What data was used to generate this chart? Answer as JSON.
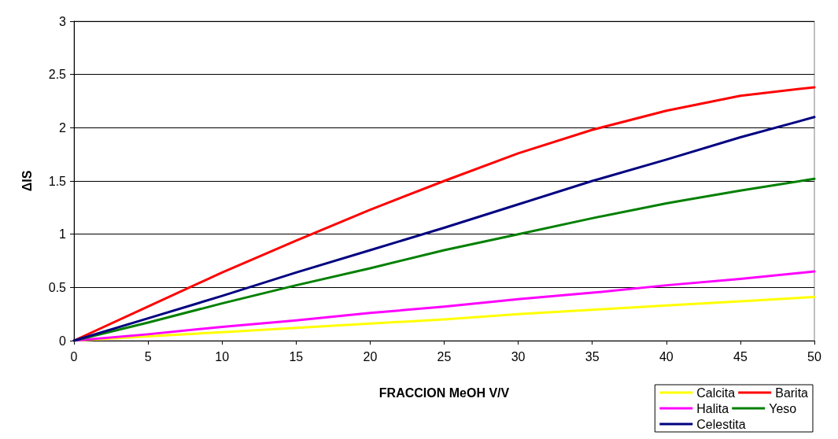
{
  "chart_data": {
    "type": "line",
    "xlabel": "FRACCION MeOH V/V",
    "ylabel": "ΔIS",
    "x": [
      0,
      5,
      10,
      15,
      20,
      25,
      30,
      35,
      40,
      45,
      50
    ],
    "xlim": [
      0,
      50
    ],
    "xticks": [
      0,
      5,
      10,
      15,
      20,
      25,
      30,
      35,
      40,
      45,
      50
    ],
    "ylim": [
      0,
      3
    ],
    "yticks": [
      0,
      0.5,
      1,
      1.5,
      2,
      2.5,
      3
    ],
    "grid": "y",
    "legend": "bottom right",
    "marker": "none",
    "line_style": "solid",
    "series": [
      {
        "name": "Calcita",
        "color": "#ffff00",
        "values": [
          0,
          0.04,
          0.08,
          0.12,
          0.16,
          0.2,
          0.25,
          0.29,
          0.33,
          0.37,
          0.41
        ]
      },
      {
        "name": "Barita",
        "color": "#ff0000",
        "values": [
          0,
          0.32,
          0.64,
          0.94,
          1.23,
          1.5,
          1.76,
          1.98,
          2.16,
          2.3,
          2.38
        ]
      },
      {
        "name": "Halita",
        "color": "#ff00ff",
        "values": [
          0,
          0.06,
          0.13,
          0.19,
          0.26,
          0.32,
          0.39,
          0.45,
          0.52,
          0.58,
          0.65
        ]
      },
      {
        "name": "Yeso",
        "color": "#008000",
        "values": [
          0,
          0.17,
          0.35,
          0.52,
          0.68,
          0.85,
          1.0,
          1.15,
          1.29,
          1.41,
          1.52
        ]
      },
      {
        "name": "Celestita",
        "color": "#000080",
        "values": [
          0,
          0.21,
          0.42,
          0.64,
          0.85,
          1.06,
          1.28,
          1.5,
          1.7,
          1.91,
          2.1
        ]
      }
    ]
  }
}
